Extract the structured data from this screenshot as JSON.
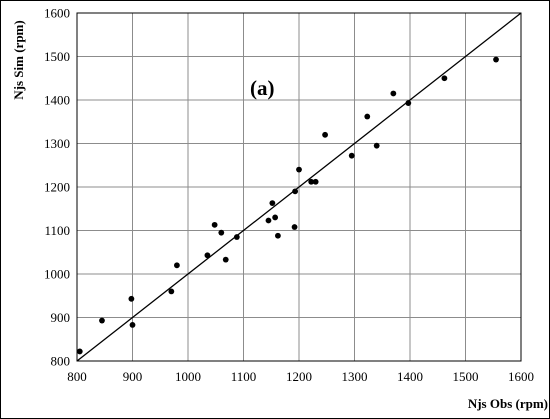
{
  "chart_data": {
    "type": "scatter",
    "panel_label": "(a)",
    "xlabel": "Njs Obs (rpm)",
    "ylabel": "Njs Sim (rpm)",
    "xlim": [
      800,
      1600
    ],
    "ylim": [
      800,
      1600
    ],
    "x_ticks": [
      800,
      900,
      1000,
      1100,
      1200,
      1300,
      1400,
      1500,
      1600
    ],
    "y_ticks": [
      800,
      900,
      1000,
      1100,
      1200,
      1300,
      1400,
      1500,
      1600
    ],
    "x_tick_labels": [
      "800",
      "900",
      "1000",
      "1100",
      "1200",
      "1300",
      "1400",
      "1500",
      "1600"
    ],
    "y_tick_labels": [
      "800",
      "900",
      "1000",
      "1100",
      "1200",
      "1300",
      "1400",
      "1500",
      "1600"
    ],
    "grid": true,
    "reference_line": {
      "type": "y=x",
      "from": 800,
      "to": 1600
    },
    "colors": {
      "points": "#000000",
      "grid": "#8c8c8c",
      "line": "#000000"
    },
    "points": [
      {
        "x": 805,
        "y": 822
      },
      {
        "x": 845,
        "y": 893
      },
      {
        "x": 898,
        "y": 943
      },
      {
        "x": 900,
        "y": 883
      },
      {
        "x": 970,
        "y": 960
      },
      {
        "x": 980,
        "y": 1020
      },
      {
        "x": 1035,
        "y": 1043
      },
      {
        "x": 1048,
        "y": 1113
      },
      {
        "x": 1060,
        "y": 1095
      },
      {
        "x": 1068,
        "y": 1033
      },
      {
        "x": 1088,
        "y": 1085
      },
      {
        "x": 1145,
        "y": 1123
      },
      {
        "x": 1152,
        "y": 1163
      },
      {
        "x": 1157,
        "y": 1130
      },
      {
        "x": 1162,
        "y": 1088
      },
      {
        "x": 1192,
        "y": 1108
      },
      {
        "x": 1193,
        "y": 1190
      },
      {
        "x": 1200,
        "y": 1240
      },
      {
        "x": 1222,
        "y": 1212
      },
      {
        "x": 1230,
        "y": 1212
      },
      {
        "x": 1247,
        "y": 1320
      },
      {
        "x": 1295,
        "y": 1272
      },
      {
        "x": 1323,
        "y": 1362
      },
      {
        "x": 1340,
        "y": 1295
      },
      {
        "x": 1370,
        "y": 1415
      },
      {
        "x": 1397,
        "y": 1393
      },
      {
        "x": 1462,
        "y": 1450
      },
      {
        "x": 1555,
        "y": 1493
      }
    ]
  }
}
